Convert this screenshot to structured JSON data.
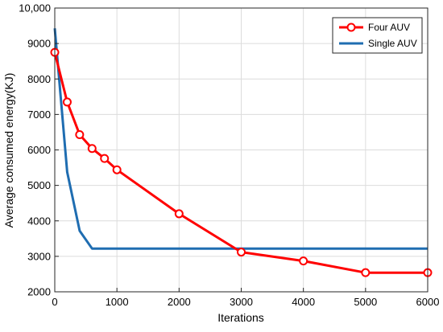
{
  "chart_data": {
    "type": "line",
    "title": "",
    "xlabel": "Iterations",
    "ylabel": "Average consumed energy(KJ)",
    "xlim": [
      0,
      6000
    ],
    "ylim": [
      2000,
      10000
    ],
    "xticks": [
      0,
      1000,
      2000,
      3000,
      4000,
      5000,
      6000
    ],
    "xtick_labels": [
      "0",
      "1000",
      "2000",
      "3000",
      "4000",
      "5000",
      "6000"
    ],
    "yticks": [
      2000,
      3000,
      4000,
      5000,
      6000,
      7000,
      8000,
      9000,
      10000
    ],
    "ytick_labels": [
      "2000",
      "3000",
      "4000",
      "5000",
      "6000",
      "7000",
      "8000",
      "9000",
      "10,000"
    ],
    "grid": true,
    "legend_position": "top-right",
    "series": [
      {
        "name": "Four AUV",
        "color": "#ff0000",
        "marker": "circle",
        "x": [
          0,
          200,
          400,
          600,
          800,
          1000,
          2000,
          3000,
          4000,
          5000,
          6000
        ],
        "y": [
          8750,
          7350,
          6430,
          6040,
          5760,
          5440,
          4200,
          3120,
          2870,
          2540,
          2540
        ]
      },
      {
        "name": "Single AUV",
        "color": "#1f6db1",
        "marker": "none",
        "x": [
          0,
          200,
          400,
          600,
          1000,
          2000,
          3000,
          4000,
          5000,
          6000
        ],
        "y": [
          9430,
          5380,
          3720,
          3220,
          3220,
          3220,
          3220,
          3220,
          3220,
          3220
        ]
      }
    ]
  }
}
